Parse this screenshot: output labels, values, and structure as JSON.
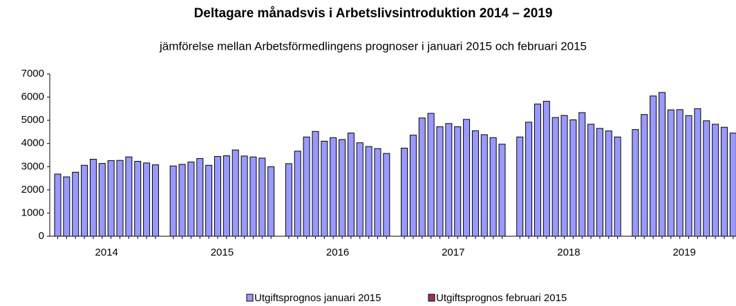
{
  "chart_data": {
    "type": "bar",
    "title": "Deltagare månadsvis i Arbetslivsintroduktion 2014 – 2019",
    "subtitle": "jämförelse mellan Arbetsförmedlingens prognoser i januari 2015 och februari 2015",
    "categories": [
      "2014",
      "2015",
      "2016",
      "2017",
      "2018",
      "2019"
    ],
    "series": [
      {
        "name": "Utgiftsprognos januari 2015",
        "color": "#9999ff",
        "values": [
          [
            2680,
            2560,
            2760,
            3060,
            3320,
            3140,
            3260,
            3270,
            3420,
            3230,
            3160,
            3080
          ],
          [
            3030,
            3100,
            3200,
            3350,
            3060,
            3440,
            3470,
            3720,
            3460,
            3420,
            3370,
            3000
          ],
          [
            3130,
            3670,
            4280,
            4520,
            4100,
            4250,
            4170,
            4450,
            4030,
            3870,
            3780,
            3570
          ],
          [
            3800,
            4360,
            5100,
            5300,
            4720,
            4860,
            4720,
            5040,
            4550,
            4380,
            4250,
            3970
          ],
          [
            4280,
            4920,
            5700,
            5820,
            5120,
            5210,
            5020,
            5330,
            4830,
            4650,
            4540,
            4280
          ],
          [
            4600,
            5250,
            6050,
            6200,
            5450,
            5460,
            5200,
            5500,
            4980,
            4830,
            4700,
            4450
          ]
        ]
      },
      {
        "name": "Utgiftsprognos februari 2015",
        "color": "#993366"
      }
    ],
    "ylim": [
      0,
      7000
    ],
    "yticks": [
      0,
      1000,
      2000,
      3000,
      4000,
      5000,
      6000,
      7000
    ],
    "grid": false
  }
}
